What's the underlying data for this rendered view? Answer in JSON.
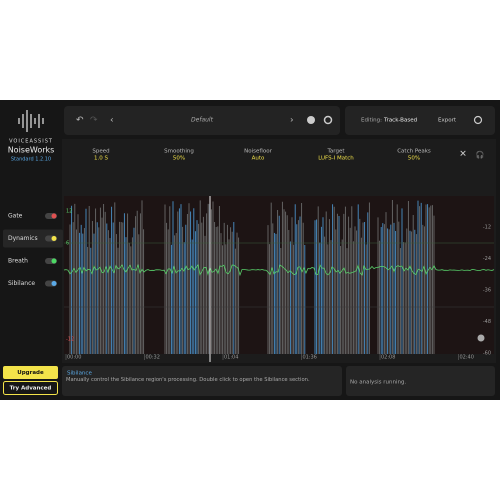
{
  "logo": {
    "brand": "VOICEASSIST",
    "name": "NoiseWorks",
    "version": "Standard 1.2.10"
  },
  "toolbar": {
    "preset": "Default",
    "editing_label": "Editing:",
    "editing_mode": "Track-Based",
    "export": "Export"
  },
  "params": [
    {
      "label": "Speed",
      "value": "1.0 S"
    },
    {
      "label": "Smoothing",
      "value": "50%"
    },
    {
      "label": "Noisefloor",
      "value": "Auto"
    },
    {
      "label": "Target",
      "value": "LUFS-I Match"
    },
    {
      "label": "Catch Peaks",
      "value": "50%"
    }
  ],
  "sidebar": [
    "Gate",
    "Dynamics",
    "Breath",
    "Sibilance"
  ],
  "graph": {
    "left_axis": [
      "12",
      "6",
      "-12"
    ],
    "right_axis": [
      "-12",
      "-24",
      "-36",
      "-48",
      "-60"
    ],
    "time_labels": [
      "00:00",
      "00:32",
      "01:04",
      "01:36",
      "02:08",
      "02:40"
    ]
  },
  "buttons": {
    "upgrade": "Upgrade",
    "try": "Try Advanced"
  },
  "info": {
    "title": "Sibilance",
    "text": "Manually control the Sibilance region's processing. Double click to open the Sibilance section."
  },
  "status": "No analysis running."
}
